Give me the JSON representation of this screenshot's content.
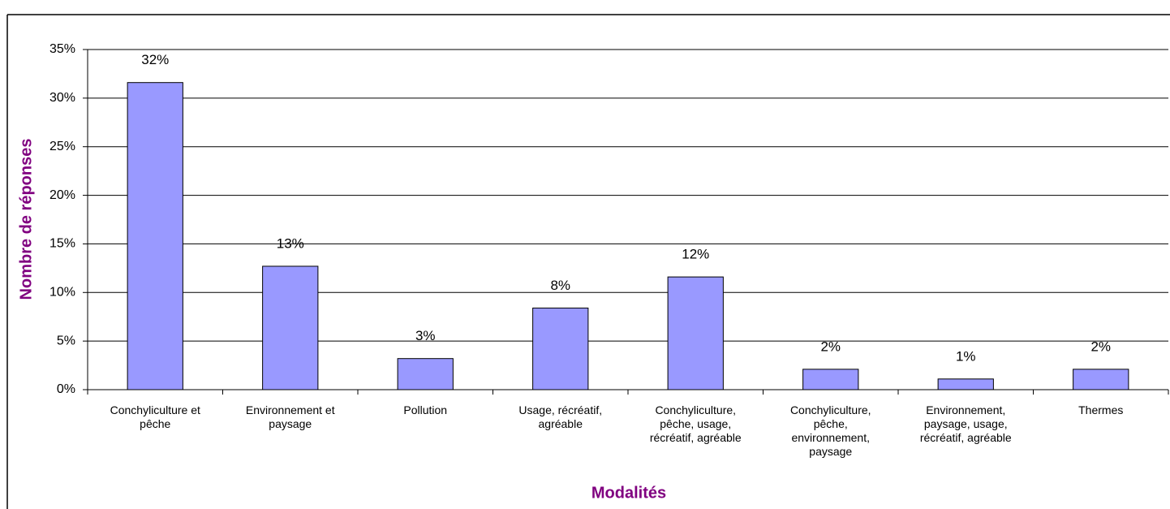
{
  "chart_data": {
    "type": "bar",
    "x_label": "Modalités",
    "y_label": "Nombre de réponses",
    "categories": [
      "Conchyliculture et pêche",
      "Environnement et paysage",
      "Pollution",
      "Usage, récréatif, agréable",
      "Conchyliculture, pêche, usage, récréatif, agréable",
      "Conchyliculture, pêche, environnement, paysage",
      "Environnement, paysage, usage, récréatif, agréable",
      "Thermes"
    ],
    "values": [
      31.6,
      12.7,
      3.2,
      8.4,
      11.6,
      2.1,
      1.1,
      2.1
    ],
    "value_labels": [
      "32%",
      "13%",
      "3%",
      "8%",
      "12%",
      "2%",
      "1%",
      "2%"
    ],
    "color": "#9999ff",
    "ylim": [
      0,
      35
    ],
    "yticks": [
      {
        "value": 0,
        "label": "0%"
      },
      {
        "value": 5,
        "label": "5%"
      },
      {
        "value": 10,
        "label": "10%"
      },
      {
        "value": 15,
        "label": "15%"
      },
      {
        "value": 20,
        "label": "20%"
      },
      {
        "value": 25,
        "label": "25%"
      },
      {
        "value": 30,
        "label": "30%"
      },
      {
        "value": 35,
        "label": "35%"
      }
    ],
    "grid": true
  }
}
